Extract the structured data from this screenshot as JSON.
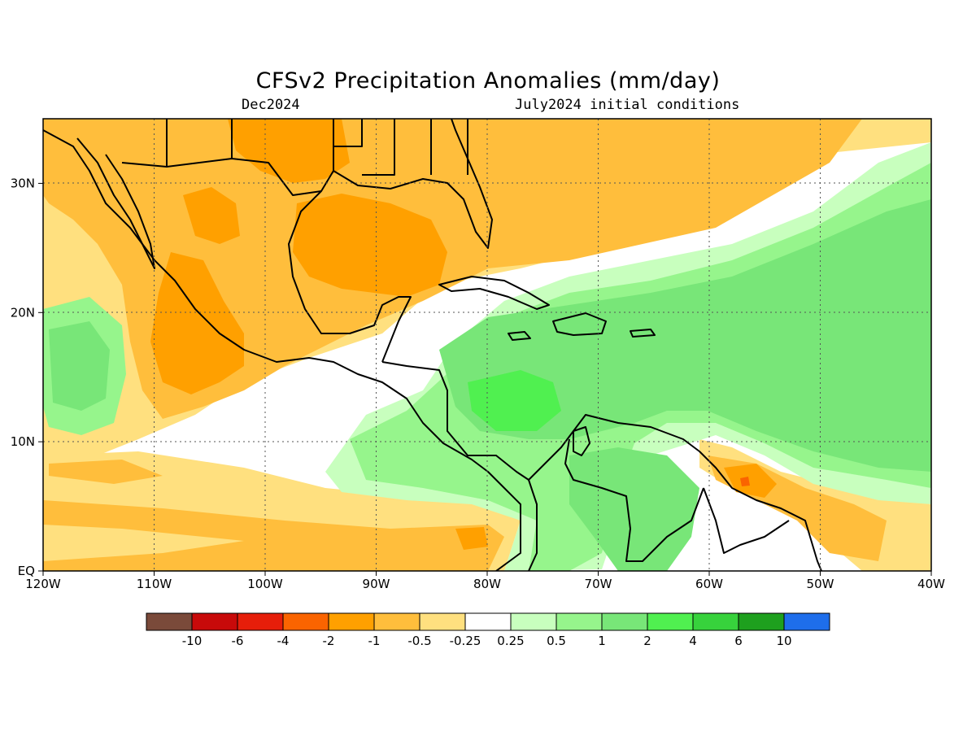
{
  "title": "CFSv2 Precipitation Anomalies (mm/day)",
  "valid_month": "Dec2024",
  "init_note": "July2024 initial conditions",
  "map": {
    "region": "Gulf of Mexico, Caribbean, Central America and northern South America",
    "lon_range": [
      -120,
      -40
    ],
    "lat_range": [
      0,
      35
    ],
    "x_tick_labels": [
      "120W",
      "110W",
      "100W",
      "90W",
      "80W",
      "70W",
      "60W",
      "50W",
      "40W"
    ],
    "y_tick_labels": [
      "EQ",
      "10N",
      "20N",
      "30N"
    ],
    "grid": "dotted"
  },
  "colorbar": {
    "colors": [
      "#7a4a3a",
      "#c80a0a",
      "#e61e0a",
      "#fa6400",
      "#ffa000",
      "#ffbe3c",
      "#ffe07f",
      "#ffffff",
      "#c8ffbe",
      "#96f58c",
      "#78e678",
      "#50f050",
      "#37d23c",
      "#1ea01e",
      "#1e6eeb"
    ],
    "labels": [
      "-10",
      "-6",
      "-4",
      "-2",
      "-1",
      "-0.5",
      "-0.25",
      "0.25",
      "0.5",
      "1",
      "2",
      "4",
      "6",
      "10"
    ]
  },
  "colors": {
    "dry_light": "#ffe07f",
    "dry_mid": "#ffbe3c",
    "dry_strong": "#ffa000",
    "dry_extreme": "#fa6400",
    "wet_light": "#c8ffbe",
    "wet_mid": "#96f58c",
    "wet_strong": "#78e678",
    "wet_extreme": "#50f050"
  }
}
